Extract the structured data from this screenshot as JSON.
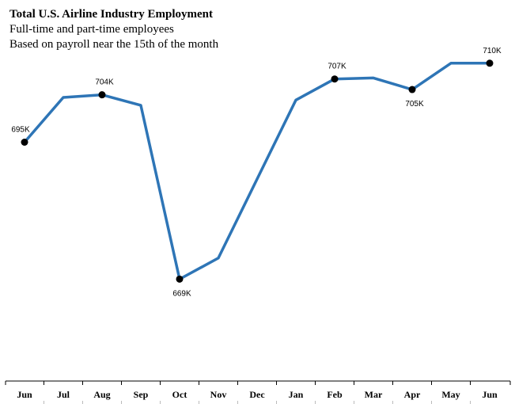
{
  "header": {
    "title": "Total U.S. Airline Industry Employment",
    "subtitle_1": "Full-time and part-time employees",
    "subtitle_2": "Based on payroll near the 15th of the month"
  },
  "chart_data": {
    "type": "line",
    "title": "Total U.S. Airline Industry Employment",
    "subtitle": "Full-time and part-time employees; Based on payroll near the 15th of the month",
    "categories": [
      "Jun",
      "Jul",
      "Aug",
      "Sep",
      "Oct",
      "Nov",
      "Dec",
      "Jan",
      "Feb",
      "Mar",
      "Apr",
      "May",
      "Jun"
    ],
    "series": [
      {
        "values": [
          695,
          703.5,
          704,
          702,
          669,
          673,
          688,
          703,
          707,
          707.2,
          705,
          710,
          710
        ],
        "color": "#2e75b6"
      }
    ],
    "marked_points": [
      {
        "index": 0,
        "label": "695K"
      },
      {
        "index": 2,
        "label": "704K"
      },
      {
        "index": 4,
        "label": "669K"
      },
      {
        "index": 8,
        "label": "707K"
      },
      {
        "index": 10,
        "label": "705K"
      },
      {
        "index": 12,
        "label": "710K"
      }
    ],
    "ylim": [
      649.8,
      722
    ],
    "grid": false,
    "legend": "none",
    "y_axis_labels": false
  }
}
